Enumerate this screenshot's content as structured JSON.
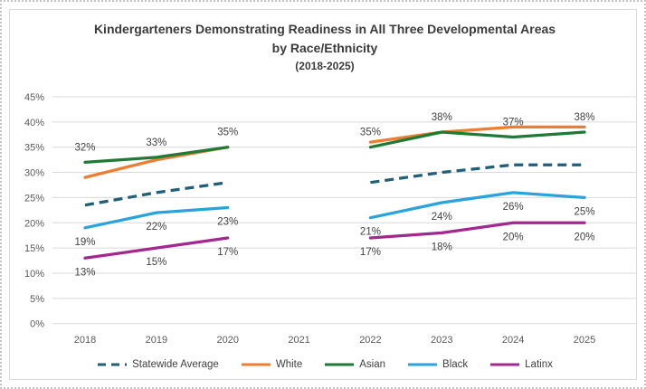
{
  "chart_data": {
    "type": "line",
    "title": "Kindergarteners Demonstrating Readiness in All Three Developmental Areas",
    "subtitle": "by Race/Ethnicity",
    "period": "(2018-2025)",
    "categories": [
      "2018",
      "2019",
      "2020",
      "2021",
      "2022",
      "2023",
      "2024",
      "2025"
    ],
    "y_axis": {
      "min": 0,
      "max": 45,
      "step": 5,
      "tick_suffix": "%"
    },
    "grid": true,
    "legend_position": "bottom",
    "colors": {
      "statewide_average": "#1F5F78",
      "white": "#ED7D31",
      "asian": "#1E7A34",
      "black": "#29A3DC",
      "latinx": "#A4278F",
      "gridline": "#D9D9D9",
      "axis_text": "#595959",
      "label_text": "#404040"
    },
    "series": [
      {
        "name": "Statewide Average",
        "key": "statewide-average",
        "color": "#1F5F78",
        "style": "dashed",
        "values": [
          23.5,
          26,
          28,
          null,
          28,
          30,
          31.5,
          31.5
        ],
        "labels_visible": false,
        "label_position": null
      },
      {
        "name": "White",
        "key": "white",
        "color": "#ED7D31",
        "style": "solid",
        "values": [
          29,
          32.5,
          35,
          null,
          36,
          38,
          39,
          39
        ],
        "labels_visible": false,
        "label_position": null
      },
      {
        "name": "Asian",
        "key": "asian",
        "color": "#1E7A34",
        "style": "solid",
        "values": [
          32,
          33,
          35,
          null,
          35,
          38,
          37,
          38
        ],
        "labels_visible": true,
        "label_position": "above"
      },
      {
        "name": "Black",
        "key": "black",
        "color": "#29A3DC",
        "style": "solid",
        "values": [
          19,
          22,
          23,
          null,
          21,
          24,
          26,
          25
        ],
        "labels_visible": true,
        "label_position": "below"
      },
      {
        "name": "Latinx",
        "key": "latinx",
        "color": "#A4278F",
        "style": "solid",
        "values": [
          13,
          15,
          17,
          null,
          17,
          18,
          20,
          20
        ],
        "labels_visible": true,
        "label_position": "below"
      }
    ]
  }
}
